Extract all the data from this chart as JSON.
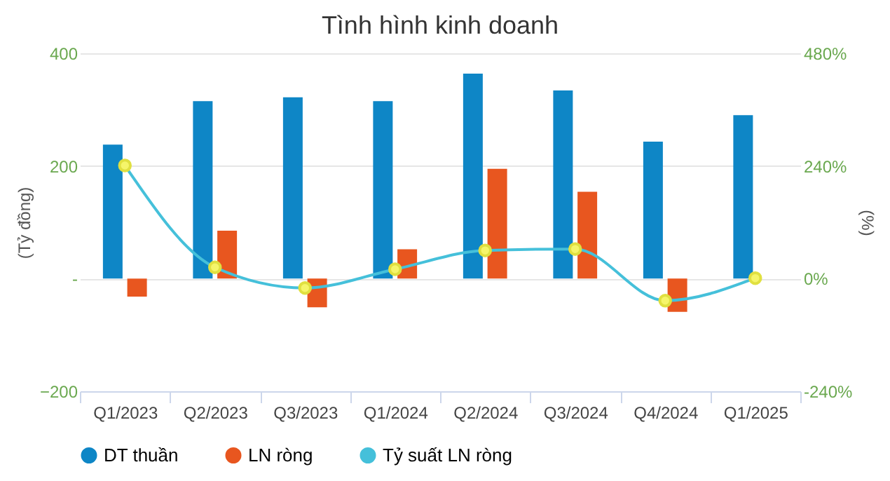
{
  "chart_data": {
    "type": "bar",
    "title": "Tình hình kinh doanh",
    "categories": [
      "Q1/2023",
      "Q2/2023",
      "Q3/2023",
      "Q1/2024",
      "Q2/2024",
      "Q3/2024",
      "Q4/2024",
      "Q1/2025"
    ],
    "series": [
      {
        "name": "DT thuần",
        "color": "#0e86c6",
        "values": [
          238,
          315,
          322,
          315,
          364,
          334,
          243,
          290
        ]
      },
      {
        "name": "LN ròng",
        "color": "#e8561f",
        "values": [
          -32,
          85,
          -51,
          52,
          195,
          154,
          -59,
          0
        ]
      },
      {
        "name": "Tỷ suất LN ròng",
        "type": "line",
        "axis": "y2",
        "color": "#45c0da",
        "marker": "circle",
        "values": [
          241,
          24,
          -20,
          20,
          60,
          63,
          -47,
          1
        ]
      }
    ],
    "ylabel": "(Tỷ đồng)",
    "y2label": "(%)",
    "ylim": [
      -200,
      400
    ],
    "yticks": [
      -200,
      {
        "value": 0,
        "label": "-"
      },
      200,
      400
    ],
    "y2lim": [
      -240,
      480
    ],
    "y2ticks": [
      {
        "value": -240,
        "label": "-240%"
      },
      {
        "value": 0,
        "label": "0%"
      },
      {
        "value": 240,
        "label": "240%"
      },
      {
        "value": 480,
        "label": "480%"
      }
    ],
    "grid": "y",
    "legend": "bottom"
  }
}
